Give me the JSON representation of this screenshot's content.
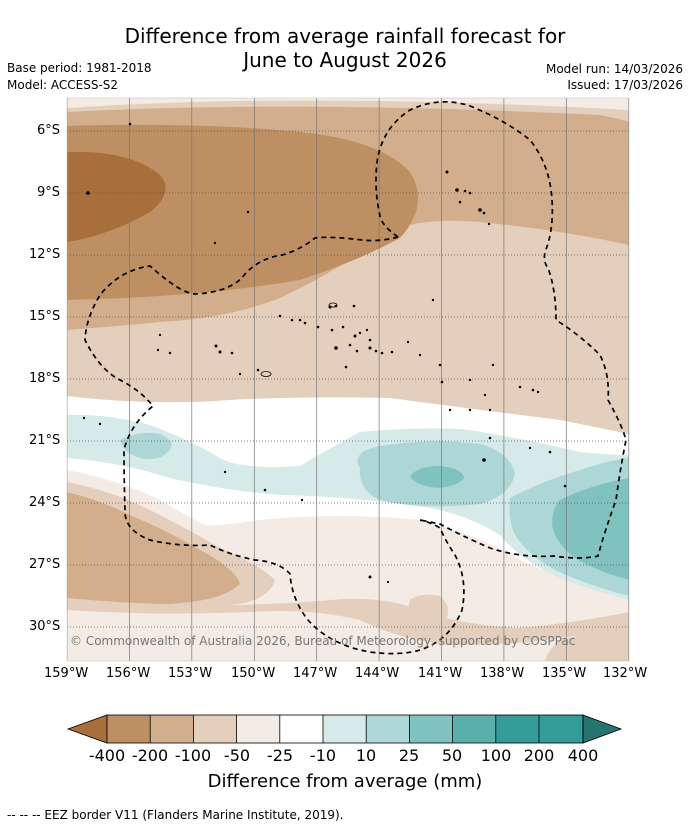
{
  "title_line1": "Difference from average rainfall forecast for",
  "title_line2": "June to August 2026",
  "base_period": "Base period: 1981-2018",
  "model": "Model: ACCESS-S2",
  "model_run": "Model run: 14/03/2026",
  "issued": "Issued: 17/03/2026",
  "copyright": "© Commonwealth of Australia 2026, Bureau of Meteorology, supported by COSPPac",
  "lat_labels": [
    "6°S",
    "9°S",
    "12°S",
    "15°S",
    "18°S",
    "21°S",
    "24°S",
    "27°S",
    "30°S"
  ],
  "lon_labels": [
    "159°W",
    "156°W",
    "153°W",
    "150°W",
    "147°W",
    "144°W",
    "141°W",
    "138°W",
    "135°W",
    "132°W"
  ],
  "colorbar": {
    "ticks": [
      "-400",
      "-200",
      "-100",
      "-50",
      "-25",
      "-10",
      "10",
      "25",
      "50",
      "100",
      "200",
      "400"
    ],
    "colors": [
      "#a86f3c",
      "#be8f63",
      "#d2ae8c",
      "#e4cfbd",
      "#f5ebe5",
      "#ffffff",
      "#d6eae9",
      "#acd7d6",
      "#80c2c0",
      "#5aafac",
      "#339b98",
      "#267370"
    ],
    "label": "Difference from average (mm)"
  },
  "footer": "--  --  -- EEZ border V11 (Flanders Marine Institute, 2019)."
}
